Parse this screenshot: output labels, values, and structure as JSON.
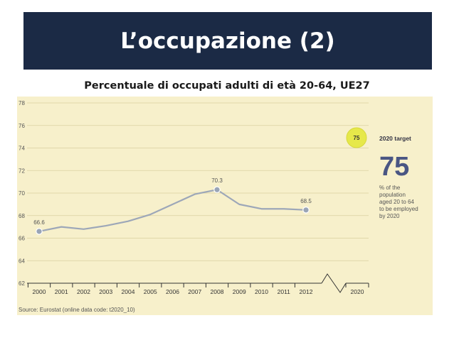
{
  "slide": {
    "title": "L’occupazione (2)",
    "subtitle": "Percentuale di occupati adulti di età 20-64, UE27"
  },
  "chart_data": {
    "type": "line",
    "title": "",
    "xlabel": "",
    "ylabel": "",
    "categories": [
      "2000",
      "2001",
      "2002",
      "2003",
      "2004",
      "2005",
      "2006",
      "2007",
      "2008",
      "2009",
      "2010",
      "2011",
      "2012",
      "2020"
    ],
    "yticks": [
      "62",
      "64",
      "66",
      "68",
      "70",
      "72",
      "74",
      "76",
      "78"
    ],
    "ylim": [
      62,
      78
    ],
    "grid": true,
    "series": [
      {
        "x": [
          "2000",
          "2001",
          "2002",
          "2003",
          "2004",
          "2005",
          "2006",
          "2007",
          "2008",
          "2009",
          "2010",
          "2011",
          "2012"
        ],
        "values": [
          66.6,
          67.0,
          66.8,
          67.1,
          67.5,
          68.1,
          69.0,
          69.9,
          70.3,
          69.0,
          68.6,
          68.6,
          68.5
        ],
        "color": "#9da7b8"
      }
    ],
    "data_labels": [
      {
        "x": "2000",
        "text": "66.6"
      },
      {
        "x": "2008",
        "text": "70.3"
      },
      {
        "x": "2012",
        "text": "68.5"
      }
    ],
    "target_badge": "75",
    "target_panel": {
      "title": "2020 target",
      "value": "75",
      "description": [
        "% of the",
        "population",
        "aged 20 to 64",
        "to be employed",
        "by 2020"
      ]
    },
    "source": "Source: Eurostat (online data code: t2020_10)",
    "colors": {
      "panel_background": "#f7f0cb",
      "line": "#9da7b8",
      "marker": "#9aa5b6",
      "badge": "#e6e84a",
      "target_value": "#4a5683"
    }
  }
}
